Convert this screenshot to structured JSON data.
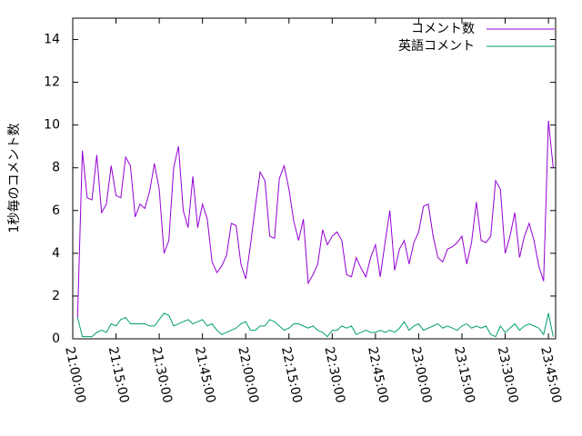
{
  "chart_data": {
    "type": "line",
    "ylabel": "1秒毎のコメント数",
    "x": [
      "21:01:40",
      "21:03:20",
      "21:05:00",
      "21:06:40",
      "21:08:20",
      "21:10:00",
      "21:11:40",
      "21:13:20",
      "21:15:00",
      "21:16:40",
      "21:18:20",
      "21:20:00",
      "21:21:40",
      "21:23:20",
      "21:25:00",
      "21:26:40",
      "21:28:20",
      "21:30:00",
      "21:31:40",
      "21:33:20",
      "21:35:00",
      "21:36:40",
      "21:38:20",
      "21:40:00",
      "21:41:40",
      "21:43:20",
      "21:45:00",
      "21:46:40",
      "21:48:20",
      "21:50:00",
      "21:51:40",
      "21:53:20",
      "21:55:00",
      "21:56:40",
      "21:58:20",
      "22:00:00",
      "22:01:40",
      "22:03:20",
      "22:05:00",
      "22:06:40",
      "22:08:20",
      "22:10:00",
      "22:11:40",
      "22:13:20",
      "22:15:00",
      "22:16:40",
      "22:18:20",
      "22:20:00",
      "22:21:40",
      "22:23:20",
      "22:25:00",
      "22:26:40",
      "22:28:20",
      "22:30:00",
      "22:31:40",
      "22:33:20",
      "22:35:00",
      "22:36:40",
      "22:38:20",
      "22:40:00",
      "22:41:40",
      "22:43:20",
      "22:45:00",
      "22:46:40",
      "22:48:20",
      "22:50:00",
      "22:51:40",
      "22:53:20",
      "22:55:00",
      "22:56:40",
      "22:58:20",
      "23:00:00",
      "23:01:40",
      "23:03:20",
      "23:05:00",
      "23:06:40",
      "23:08:20",
      "23:10:00",
      "23:11:40",
      "23:13:20",
      "23:15:00",
      "23:16:40",
      "23:18:20",
      "23:20:00",
      "23:21:40",
      "23:23:20",
      "23:25:00",
      "23:26:40",
      "23:28:20",
      "23:30:00",
      "23:31:40",
      "23:33:20",
      "23:35:00",
      "23:36:40",
      "23:38:20",
      "23:40:00",
      "23:41:40",
      "23:43:20",
      "23:45:00",
      "23:46:40"
    ],
    "series": [
      {
        "name": "コメント数",
        "color": "#9400d3",
        "values": [
          1.0,
          8.8,
          6.6,
          6.5,
          8.6,
          5.9,
          6.3,
          8.1,
          6.7,
          6.6,
          8.5,
          8.1,
          5.7,
          6.3,
          6.1,
          6.9,
          8.2,
          7.0,
          4.0,
          4.6,
          8.0,
          9.0,
          6.0,
          5.2,
          7.6,
          5.2,
          6.3,
          5.6,
          3.6,
          3.1,
          3.4,
          3.9,
          5.4,
          5.3,
          3.5,
          2.8,
          4.4,
          6.2,
          7.8,
          7.4,
          4.8,
          4.7,
          7.5,
          8.1,
          7.0,
          5.5,
          4.6,
          5.6,
          2.6,
          3.0,
          3.5,
          5.1,
          4.4,
          4.8,
          5.0,
          4.6,
          3.0,
          2.9,
          3.8,
          3.3,
          2.9,
          3.8,
          4.4,
          2.9,
          4.5,
          6.0,
          3.2,
          4.2,
          4.6,
          3.5,
          4.5,
          5.0,
          6.2,
          6.3,
          4.8,
          3.8,
          3.6,
          4.2,
          4.3,
          4.5,
          4.8,
          3.5,
          4.5,
          6.4,
          4.6,
          4.5,
          4.8,
          7.4,
          7.0,
          4.0,
          4.8,
          5.9,
          3.8,
          4.8,
          5.4,
          4.6,
          3.4,
          2.7,
          10.2,
          8.0
        ]
      },
      {
        "name": "英語コメント",
        "color": "#009e73",
        "values": [
          1.0,
          0.1,
          0.1,
          0.1,
          0.3,
          0.4,
          0.3,
          0.7,
          0.6,
          0.9,
          1.0,
          0.7,
          0.7,
          0.7,
          0.7,
          0.6,
          0.6,
          0.9,
          1.2,
          1.1,
          0.6,
          0.7,
          0.8,
          0.9,
          0.7,
          0.8,
          0.9,
          0.6,
          0.7,
          0.4,
          0.2,
          0.3,
          0.4,
          0.5,
          0.7,
          0.8,
          0.4,
          0.4,
          0.6,
          0.6,
          0.9,
          0.8,
          0.6,
          0.4,
          0.5,
          0.7,
          0.7,
          0.6,
          0.5,
          0.6,
          0.4,
          0.3,
          0.1,
          0.4,
          0.4,
          0.6,
          0.5,
          0.6,
          0.2,
          0.3,
          0.4,
          0.3,
          0.3,
          0.4,
          0.3,
          0.4,
          0.3,
          0.5,
          0.8,
          0.4,
          0.6,
          0.7,
          0.4,
          0.5,
          0.6,
          0.7,
          0.5,
          0.6,
          0.5,
          0.4,
          0.6,
          0.7,
          0.5,
          0.6,
          0.5,
          0.6,
          0.2,
          0.1,
          0.6,
          0.3,
          0.5,
          0.7,
          0.4,
          0.6,
          0.7,
          0.6,
          0.5,
          0.2,
          1.2,
          0.1
        ]
      }
    ],
    "xlim": [
      "21:00:00",
      "23:47:30"
    ],
    "xticks": [
      "21:00:00",
      "21:15:00",
      "21:30:00",
      "21:45:00",
      "22:00:00",
      "22:15:00",
      "22:30:00",
      "22:45:00",
      "23:00:00",
      "23:15:00",
      "23:30:00",
      "23:45:00"
    ],
    "ylim": [
      0,
      15
    ],
    "yticks": [
      0,
      2,
      4,
      6,
      8,
      10,
      12,
      14
    ],
    "legend": "top right",
    "grid": false
  }
}
